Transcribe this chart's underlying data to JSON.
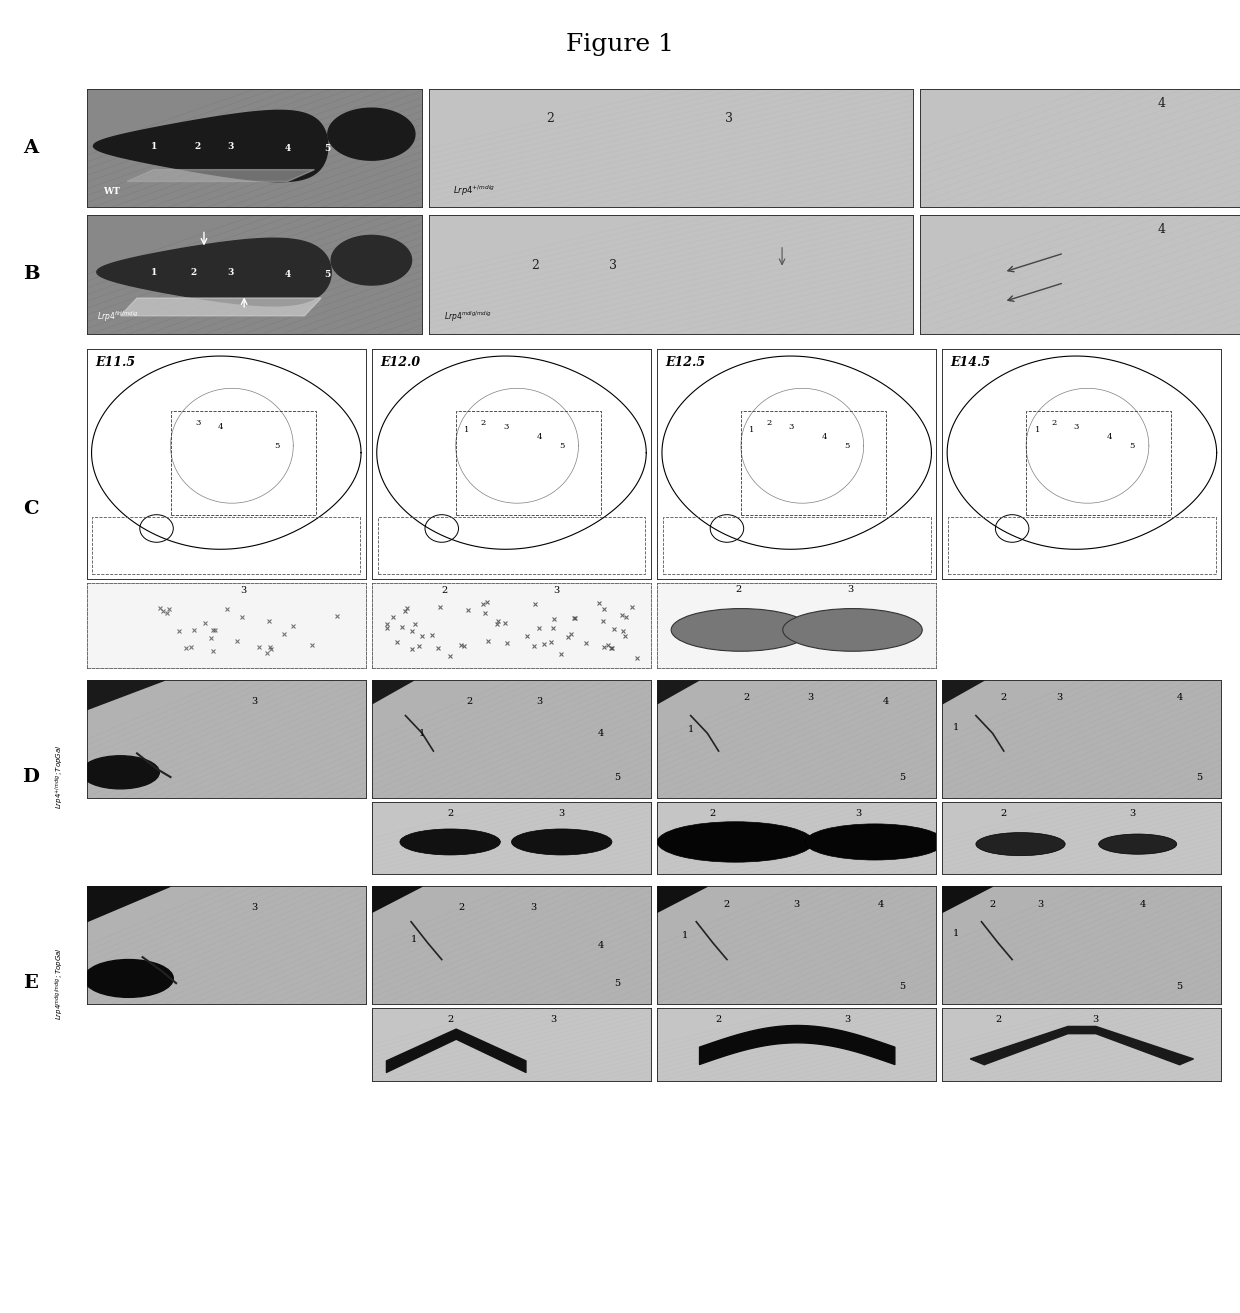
{
  "title": "Figure 1",
  "title_fontsize": 18,
  "background_color": "#ffffff",
  "figure_size": [
    12.4,
    13.13
  ],
  "dpi": 100,
  "section_label_fontsize": 14,
  "panel_bg_photo": "#a0a0a0",
  "panel_bg_light": "#c8c8c8",
  "panel_bg_schematic": "#f0f0f0",
  "panel_bg_DE": "#b0b0b0",
  "panel_bg_inset": "#c8c8c8",
  "stages": [
    "E11.5",
    "E12.0",
    "E12.5",
    "E14.5"
  ]
}
